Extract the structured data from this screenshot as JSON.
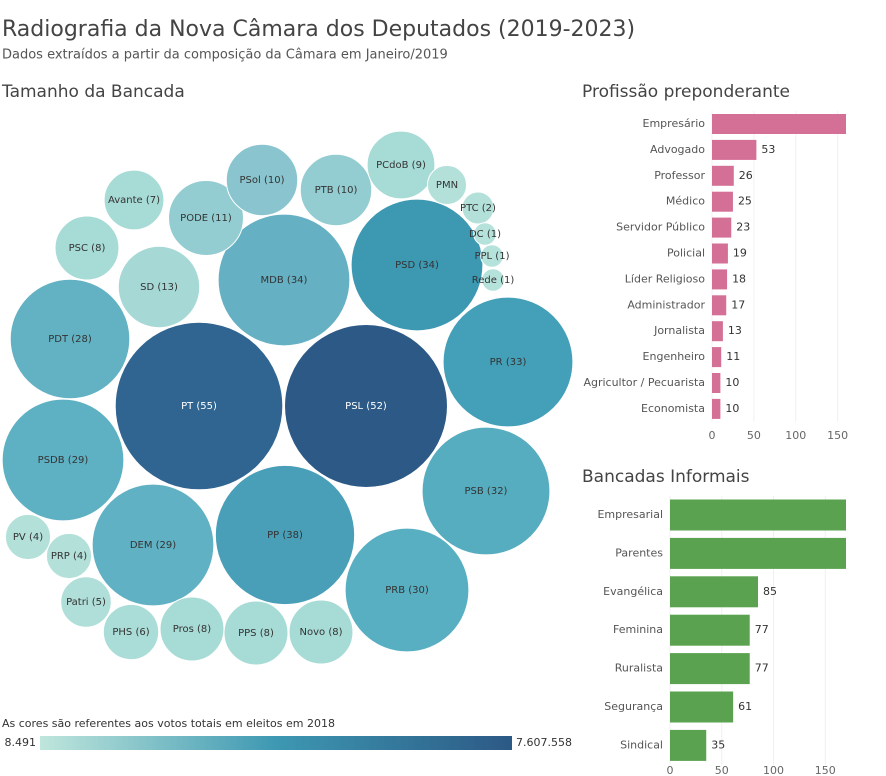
{
  "title": "Radiografia da Nova Câmara dos Deputados (2019-2023)",
  "subtitle": "Dados extraídos a partir da composição da Câmara em Janeiro/2019",
  "chart_data": [
    {
      "type": "bubble",
      "title": "Tamanho da Bancada",
      "values": [
        55,
        52,
        34,
        34,
        33,
        38,
        32,
        30,
        28,
        29,
        29,
        13,
        11,
        10,
        10,
        9,
        7,
        8,
        3,
        2,
        1,
        1,
        1,
        4,
        4,
        5,
        6,
        8,
        8,
        8
      ],
      "value_labels": [
        "PT (55)",
        "PSL (52)",
        "MDB (34)",
        "PSD (34)",
        "PR (33)",
        "PP (38)",
        "PSB (32)",
        "PRB (30)",
        "PDT (28)",
        "PSDB (29)",
        "DEM (29)",
        "SD (13)",
        "PODE (11)",
        "PSol (10)",
        "PTB (10)",
        "PCdoB (9)",
        "Avante (7)",
        "PSC (8)",
        "PMN",
        "PTC (2)",
        "DC (1)",
        "PPL (1)",
        "Rede (1)",
        "PV (4)",
        "PRP (4)",
        "Patri (5)",
        "PHS (6)",
        "Pros (8)",
        "PPS (8)",
        "Novo (8)"
      ],
      "colors": [
        "#2f6590",
        "#2c5985",
        "#66b0c3",
        "#3d98b2",
        "#43a0b8",
        "#4a9fb8",
        "#56adc0",
        "#59afc2",
        "#62b2c3",
        "#5eb0c3",
        "#60b1c3",
        "#a6d9d6",
        "#93cdd1",
        "#8ac5cf",
        "#93cdd1",
        "#a7dbd6",
        "#a7dbd6",
        "#a7dbd6",
        "#b3e1da",
        "#b3e1da",
        "#b5e2db",
        "#b5e2db",
        "#b5e2db",
        "#b3e1da",
        "#b3e1da",
        "#b0dfd9",
        "#aaddd7",
        "#a7dbd6",
        "#a7dbd6",
        "#a7dbd6"
      ],
      "color_scale": {
        "title": "As cores são referentes aos votos totais em eleitos em 2018",
        "min": {
          "value": 8491,
          "label": "8.491"
        },
        "max": {
          "value": 7607558,
          "label": "7.607.558"
        },
        "colors": [
          "#bfe6dc",
          "#3d98b2",
          "#2c5985"
        ]
      }
    },
    {
      "type": "barh",
      "title": "Profissão preponderante",
      "categories": [
        "Empresário",
        "Advogado",
        "Professor",
        "Médico",
        "Servidor Público",
        "Policial",
        "Líder Religioso",
        "Administrador",
        "Jornalista",
        "Engenheiro",
        "Agricultor / Pecuarista",
        "Economista"
      ],
      "values": [
        160,
        53,
        26,
        25,
        23,
        19,
        18,
        17,
        13,
        11,
        10,
        10
      ],
      "color": "#d46f95",
      "xlim": [
        0,
        160
      ],
      "xticks": [
        0,
        50,
        100,
        150
      ]
    },
    {
      "type": "barh",
      "title": "Bancadas Informais",
      "categories": [
        "Empresarial",
        "Parentes",
        "Evangélica",
        "Feminina",
        "Ruralista",
        "Segurança",
        "Sindical"
      ],
      "values": [
        170,
        170,
        85,
        77,
        77,
        61,
        35
      ],
      "color": "#5aa24f",
      "xlim": [
        0,
        170
      ],
      "xticks": [
        0,
        50,
        100,
        150
      ]
    }
  ]
}
